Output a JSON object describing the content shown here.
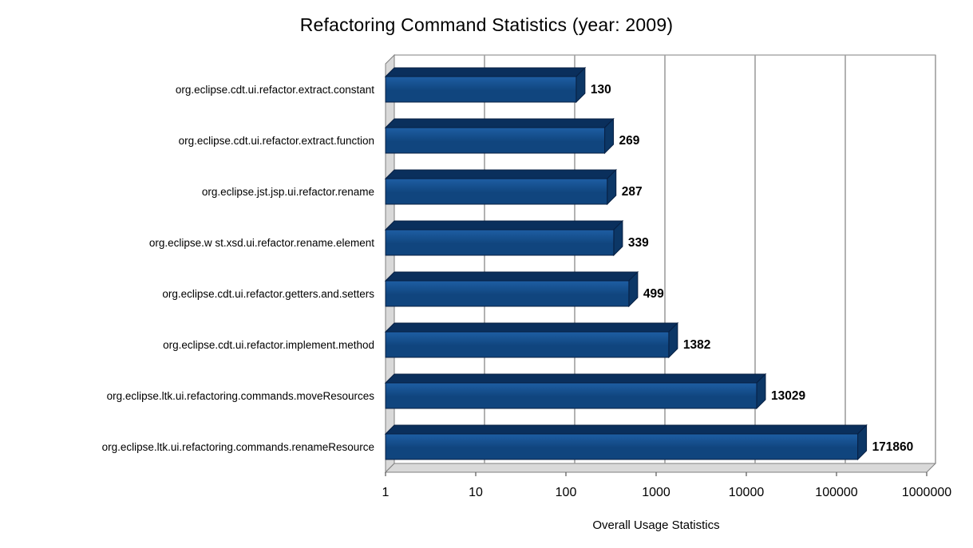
{
  "chart_data": {
    "type": "bar",
    "orientation": "horizontal",
    "title": "Refactoring Command Statistics (year: 2009)",
    "xlabel": "Overall Usage Statistics",
    "x_scale": "log",
    "x_range": [
      1,
      1000000
    ],
    "x_ticks": [
      "1",
      "10",
      "100",
      "1000",
      "10000",
      "100000",
      "1000000"
    ],
    "grid": "vertical-decade-gridlines",
    "legend": "none",
    "categories": [
      "org.eclipse.cdt.ui.refactor.extract.constant",
      "org.eclipse.cdt.ui.refactor.extract.function",
      "org.eclipse.jst.jsp.ui.refactor.rename",
      "org.eclipse.w st.xsd.ui.refactor.rename.element",
      "org.eclipse.cdt.ui.refactor.getters.and.setters",
      "org.eclipse.cdt.ui.refactor.implement.method",
      "org.eclipse.ltk.ui.refactoring.commands.moveResources",
      "org.eclipse.ltk.ui.refactoring.commands.renameResource"
    ],
    "values": [
      130,
      269,
      287,
      339,
      499,
      1382,
      13029,
      171860
    ],
    "value_labels": [
      "130",
      "269",
      "287",
      "339",
      "499",
      "1382",
      "13029",
      "171860"
    ],
    "colors": {
      "bar_front": "#10457e",
      "bar_front_light": "#1e5ea3",
      "bar_top": "#0a2f5c",
      "bar_side": "#0c3766",
      "bar_stroke": "#071f42",
      "wall": "#d9d9d9",
      "gridline": "#9e9e9e",
      "border": "#7f7f7f",
      "background": "#ffffff",
      "text": "#000000"
    }
  }
}
